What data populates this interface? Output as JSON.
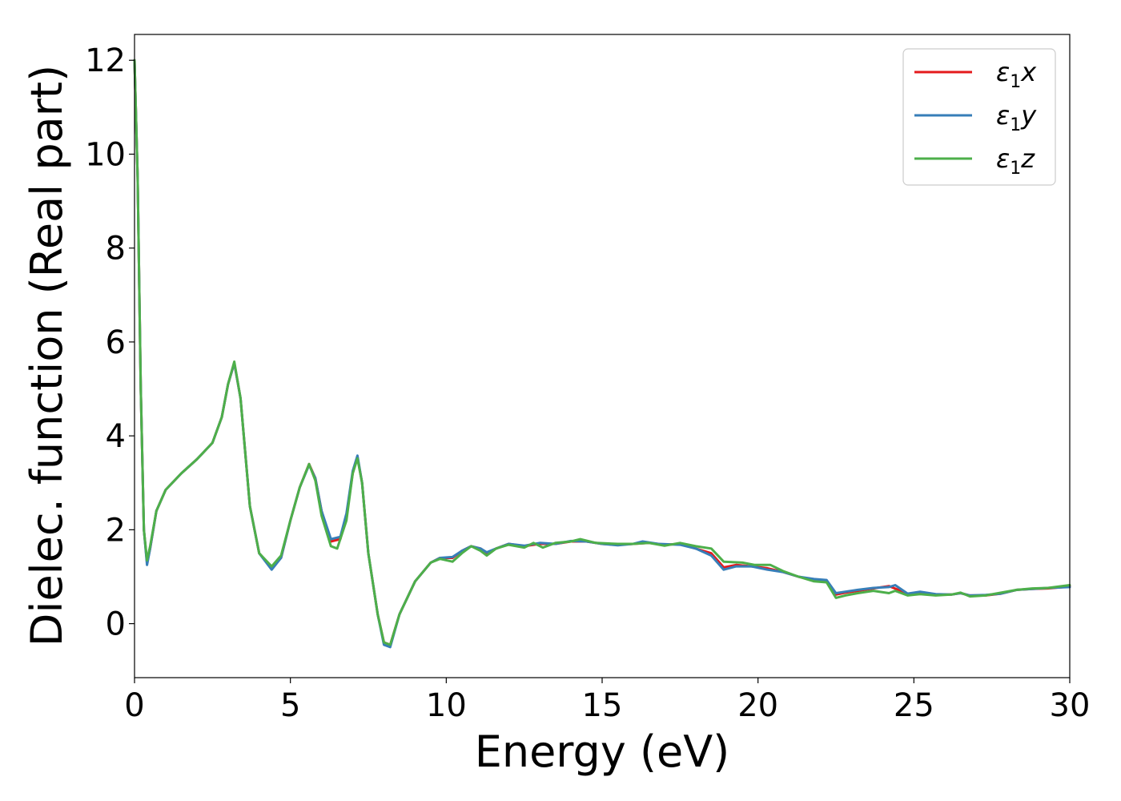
{
  "chart_data": {
    "type": "line",
    "title": "",
    "xlabel": "Energy (eV)",
    "ylabel": "Dielec. function (Real part)",
    "xlim": [
      0,
      30
    ],
    "ylim": [
      -1.15,
      12.55
    ],
    "x_ticks": [
      0,
      5,
      10,
      15,
      20,
      25,
      30
    ],
    "x_tick_labels": [
      "0",
      "5",
      "10",
      "15",
      "20",
      "25",
      "30"
    ],
    "y_ticks": [
      0,
      2,
      4,
      6,
      8,
      10,
      12
    ],
    "y_tick_labels": [
      "0",
      "2",
      "4",
      "6",
      "8",
      "10",
      "12"
    ],
    "grid": false,
    "legend_position": "top-right",
    "series": [
      {
        "name": "ε1x",
        "legend_symbol": "ε",
        "legend_subscript": "1",
        "legend_suffix": "x",
        "color": "#e41a1c",
        "points": [
          [
            0,
            12.0
          ],
          [
            0.1,
            9.5
          ],
          [
            0.2,
            5.0
          ],
          [
            0.3,
            2.0
          ],
          [
            0.4,
            1.3
          ],
          [
            0.5,
            1.6
          ],
          [
            0.7,
            2.4
          ],
          [
            1.0,
            2.85
          ],
          [
            1.5,
            3.2
          ],
          [
            2.0,
            3.5
          ],
          [
            2.5,
            3.85
          ],
          [
            2.8,
            4.4
          ],
          [
            3.0,
            5.1
          ],
          [
            3.2,
            5.55
          ],
          [
            3.4,
            4.8
          ],
          [
            3.7,
            2.5
          ],
          [
            4.0,
            1.5
          ],
          [
            4.4,
            1.2
          ],
          [
            4.7,
            1.4
          ],
          [
            5.0,
            2.2
          ],
          [
            5.3,
            2.9
          ],
          [
            5.6,
            3.4
          ],
          [
            5.8,
            3.1
          ],
          [
            6.0,
            2.4
          ],
          [
            6.3,
            1.75
          ],
          [
            6.6,
            1.8
          ],
          [
            6.8,
            2.3
          ],
          [
            7.0,
            3.2
          ],
          [
            7.15,
            3.55
          ],
          [
            7.3,
            3.0
          ],
          [
            7.5,
            1.5
          ],
          [
            7.8,
            0.2
          ],
          [
            8.0,
            -0.4
          ],
          [
            8.2,
            -0.45
          ],
          [
            8.5,
            0.2
          ],
          [
            9.0,
            0.9
          ],
          [
            9.5,
            1.3
          ],
          [
            9.8,
            1.4
          ],
          [
            10.2,
            1.4
          ],
          [
            10.5,
            1.55
          ],
          [
            10.8,
            1.65
          ],
          [
            11.1,
            1.6
          ],
          [
            11.3,
            1.5
          ],
          [
            11.6,
            1.6
          ],
          [
            12.0,
            1.7
          ],
          [
            12.5,
            1.65
          ],
          [
            13.0,
            1.7
          ],
          [
            13.5,
            1.7
          ],
          [
            14.0,
            1.75
          ],
          [
            14.5,
            1.75
          ],
          [
            15.0,
            1.7
          ],
          [
            15.5,
            1.68
          ],
          [
            16.0,
            1.7
          ],
          [
            16.5,
            1.72
          ],
          [
            17.0,
            1.68
          ],
          [
            17.5,
            1.7
          ],
          [
            18.0,
            1.6
          ],
          [
            18.5,
            1.5
          ],
          [
            18.9,
            1.2
          ],
          [
            19.3,
            1.25
          ],
          [
            19.8,
            1.22
          ],
          [
            20.3,
            1.18
          ],
          [
            20.8,
            1.1
          ],
          [
            21.3,
            1.0
          ],
          [
            21.8,
            0.93
          ],
          [
            22.2,
            0.9
          ],
          [
            22.5,
            0.62
          ],
          [
            22.8,
            0.66
          ],
          [
            23.2,
            0.7
          ],
          [
            23.7,
            0.75
          ],
          [
            24.2,
            0.8
          ],
          [
            24.5,
            0.72
          ],
          [
            24.8,
            0.62
          ],
          [
            25.2,
            0.64
          ],
          [
            25.7,
            0.62
          ],
          [
            26.2,
            0.62
          ],
          [
            26.5,
            0.65
          ],
          [
            26.8,
            0.6
          ],
          [
            27.3,
            0.6
          ],
          [
            27.8,
            0.64
          ],
          [
            28.3,
            0.72
          ],
          [
            28.8,
            0.74
          ],
          [
            29.3,
            0.75
          ],
          [
            30.0,
            0.79
          ]
        ]
      },
      {
        "name": "ε1y",
        "legend_symbol": "ε",
        "legend_subscript": "1",
        "legend_suffix": "y",
        "color": "#377eb8",
        "points": [
          [
            0,
            12.0
          ],
          [
            0.1,
            9.5
          ],
          [
            0.2,
            5.0
          ],
          [
            0.3,
            2.0
          ],
          [
            0.4,
            1.25
          ],
          [
            0.5,
            1.6
          ],
          [
            0.7,
            2.4
          ],
          [
            1.0,
            2.85
          ],
          [
            1.5,
            3.2
          ],
          [
            2.0,
            3.5
          ],
          [
            2.5,
            3.85
          ],
          [
            2.8,
            4.4
          ],
          [
            3.0,
            5.1
          ],
          [
            3.2,
            5.55
          ],
          [
            3.4,
            4.8
          ],
          [
            3.7,
            2.5
          ],
          [
            4.0,
            1.5
          ],
          [
            4.4,
            1.15
          ],
          [
            4.7,
            1.4
          ],
          [
            5.0,
            2.2
          ],
          [
            5.3,
            2.9
          ],
          [
            5.6,
            3.38
          ],
          [
            5.8,
            3.1
          ],
          [
            6.0,
            2.4
          ],
          [
            6.3,
            1.8
          ],
          [
            6.6,
            1.85
          ],
          [
            6.8,
            2.35
          ],
          [
            7.0,
            3.25
          ],
          [
            7.15,
            3.58
          ],
          [
            7.3,
            3.0
          ],
          [
            7.5,
            1.5
          ],
          [
            7.8,
            0.2
          ],
          [
            8.0,
            -0.45
          ],
          [
            8.2,
            -0.5
          ],
          [
            8.5,
            0.2
          ],
          [
            9.0,
            0.9
          ],
          [
            9.5,
            1.3
          ],
          [
            9.8,
            1.4
          ],
          [
            10.2,
            1.42
          ],
          [
            10.5,
            1.55
          ],
          [
            10.8,
            1.65
          ],
          [
            11.1,
            1.6
          ],
          [
            11.3,
            1.52
          ],
          [
            11.6,
            1.6
          ],
          [
            12.0,
            1.7
          ],
          [
            12.5,
            1.66
          ],
          [
            13.0,
            1.72
          ],
          [
            13.5,
            1.7
          ],
          [
            14.0,
            1.76
          ],
          [
            14.5,
            1.75
          ],
          [
            15.0,
            1.7
          ],
          [
            15.5,
            1.67
          ],
          [
            16.0,
            1.7
          ],
          [
            16.3,
            1.75
          ],
          [
            16.8,
            1.7
          ],
          [
            17.5,
            1.68
          ],
          [
            18.0,
            1.6
          ],
          [
            18.5,
            1.45
          ],
          [
            18.9,
            1.15
          ],
          [
            19.3,
            1.22
          ],
          [
            19.8,
            1.22
          ],
          [
            20.3,
            1.15
          ],
          [
            20.8,
            1.1
          ],
          [
            21.3,
            1.0
          ],
          [
            21.8,
            0.95
          ],
          [
            22.2,
            0.93
          ],
          [
            22.5,
            0.65
          ],
          [
            22.8,
            0.68
          ],
          [
            23.2,
            0.72
          ],
          [
            23.7,
            0.76
          ],
          [
            24.2,
            0.78
          ],
          [
            24.4,
            0.82
          ],
          [
            24.8,
            0.64
          ],
          [
            25.2,
            0.68
          ],
          [
            25.7,
            0.63
          ],
          [
            26.2,
            0.62
          ],
          [
            26.5,
            0.65
          ],
          [
            26.8,
            0.6
          ],
          [
            27.3,
            0.61
          ],
          [
            27.8,
            0.64
          ],
          [
            28.3,
            0.72
          ],
          [
            28.8,
            0.74
          ],
          [
            29.3,
            0.76
          ],
          [
            30.0,
            0.78
          ]
        ]
      },
      {
        "name": "ε1z",
        "legend_symbol": "ε",
        "legend_subscript": "1",
        "legend_suffix": "z",
        "color": "#4daf4a",
        "points": [
          [
            0,
            12.0
          ],
          [
            0.1,
            9.5
          ],
          [
            0.2,
            5.0
          ],
          [
            0.3,
            2.0
          ],
          [
            0.4,
            1.35
          ],
          [
            0.5,
            1.65
          ],
          [
            0.7,
            2.4
          ],
          [
            1.0,
            2.85
          ],
          [
            1.5,
            3.2
          ],
          [
            2.0,
            3.5
          ],
          [
            2.5,
            3.85
          ],
          [
            2.8,
            4.4
          ],
          [
            3.0,
            5.1
          ],
          [
            3.2,
            5.58
          ],
          [
            3.4,
            4.8
          ],
          [
            3.7,
            2.5
          ],
          [
            4.0,
            1.5
          ],
          [
            4.4,
            1.22
          ],
          [
            4.7,
            1.45
          ],
          [
            5.0,
            2.2
          ],
          [
            5.3,
            2.9
          ],
          [
            5.6,
            3.4
          ],
          [
            5.8,
            3.05
          ],
          [
            6.0,
            2.3
          ],
          [
            6.3,
            1.65
          ],
          [
            6.5,
            1.6
          ],
          [
            6.8,
            2.2
          ],
          [
            7.0,
            3.2
          ],
          [
            7.15,
            3.52
          ],
          [
            7.3,
            3.0
          ],
          [
            7.5,
            1.5
          ],
          [
            7.8,
            0.2
          ],
          [
            8.0,
            -0.4
          ],
          [
            8.2,
            -0.45
          ],
          [
            8.5,
            0.2
          ],
          [
            9.0,
            0.9
          ],
          [
            9.5,
            1.3
          ],
          [
            9.8,
            1.38
          ],
          [
            10.2,
            1.32
          ],
          [
            10.5,
            1.5
          ],
          [
            10.8,
            1.65
          ],
          [
            11.1,
            1.55
          ],
          [
            11.3,
            1.45
          ],
          [
            11.6,
            1.6
          ],
          [
            12.0,
            1.68
          ],
          [
            12.5,
            1.62
          ],
          [
            12.8,
            1.72
          ],
          [
            13.1,
            1.62
          ],
          [
            13.5,
            1.72
          ],
          [
            14.0,
            1.75
          ],
          [
            14.3,
            1.8
          ],
          [
            14.8,
            1.72
          ],
          [
            15.5,
            1.7
          ],
          [
            16.0,
            1.7
          ],
          [
            16.5,
            1.72
          ],
          [
            17.0,
            1.66
          ],
          [
            17.5,
            1.72
          ],
          [
            18.0,
            1.65
          ],
          [
            18.5,
            1.6
          ],
          [
            18.9,
            1.32
          ],
          [
            19.5,
            1.3
          ],
          [
            19.9,
            1.25
          ],
          [
            20.4,
            1.25
          ],
          [
            20.8,
            1.12
          ],
          [
            21.3,
            1.0
          ],
          [
            21.8,
            0.9
          ],
          [
            22.2,
            0.88
          ],
          [
            22.5,
            0.55
          ],
          [
            22.8,
            0.6
          ],
          [
            23.2,
            0.65
          ],
          [
            23.7,
            0.7
          ],
          [
            24.2,
            0.65
          ],
          [
            24.4,
            0.7
          ],
          [
            24.8,
            0.6
          ],
          [
            25.2,
            0.63
          ],
          [
            25.7,
            0.6
          ],
          [
            26.2,
            0.62
          ],
          [
            26.5,
            0.66
          ],
          [
            26.8,
            0.58
          ],
          [
            27.3,
            0.6
          ],
          [
            27.8,
            0.66
          ],
          [
            28.3,
            0.72
          ],
          [
            28.8,
            0.75
          ],
          [
            29.3,
            0.76
          ],
          [
            30.0,
            0.82
          ]
        ]
      }
    ]
  }
}
